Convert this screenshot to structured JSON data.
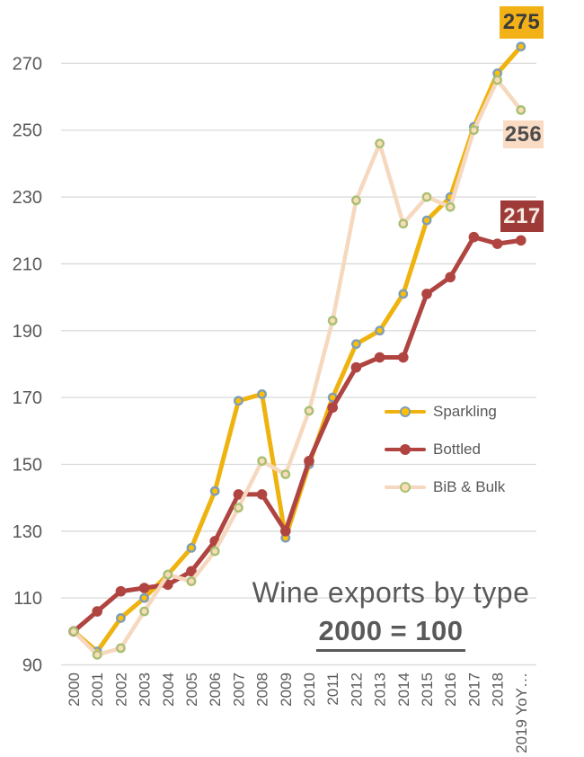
{
  "chart_data": {
    "type": "line",
    "title": "Wine exports by type",
    "subtitle": "2000 = 100",
    "categories": [
      "2000",
      "2001",
      "2002",
      "2003",
      "2004",
      "2005",
      "2006",
      "2007",
      "2008",
      "2009",
      "2010",
      "2011",
      "2012",
      "2013",
      "2014",
      "2015",
      "2016",
      "2017",
      "2018",
      "2019 YoY…"
    ],
    "series": [
      {
        "name": "Sparkling",
        "color": "#efb310",
        "marker_fill": "#ffc000",
        "marker_stroke": "#7f9db9",
        "line_width": 5,
        "marker_radius": 4.2,
        "marker_ring": 2.4,
        "values": [
          100,
          94,
          104,
          110,
          117,
          125,
          142,
          169,
          171,
          128,
          150,
          170,
          186,
          190,
          201,
          223,
          230,
          251,
          267,
          275
        ]
      },
      {
        "name": "Bottled",
        "color": "#b04441",
        "marker_fill": "#b04441",
        "marker_stroke": "#b04441",
        "line_width": 5,
        "marker_radius": 5.8,
        "marker_ring": 0,
        "values": [
          100,
          106,
          112,
          113,
          114,
          118,
          127,
          141,
          141,
          130,
          151,
          167,
          179,
          182,
          182,
          201,
          206,
          218,
          216,
          217
        ]
      },
      {
        "name": "BiB & Bulk",
        "color": "#f6d8bf",
        "marker_fill": "#fbdcba",
        "marker_stroke": "#a8c072",
        "line_width": 4.5,
        "marker_radius": 4.2,
        "marker_ring": 2.4,
        "values": [
          100,
          93,
          95,
          106,
          117,
          115,
          124,
          137,
          151,
          147,
          166,
          193,
          229,
          246,
          222,
          230,
          227,
          250,
          265,
          256
        ]
      }
    ],
    "y_ticks": [
      90,
      110,
      130,
      150,
      170,
      190,
      210,
      230,
      250,
      270
    ],
    "ylim": [
      90,
      280
    ],
    "x_range": [
      "2000",
      "2019 YoY…"
    ],
    "grid": true,
    "grid_color": "#d9d9d9",
    "axis_text_color": "#595959",
    "legend_position": "middle-right",
    "callouts": [
      {
        "series": "Sparkling",
        "text": "275",
        "bg": "#f2b217",
        "fg": "#3b3b3b"
      },
      {
        "series": "BiB & Bulk",
        "text": "256",
        "bg": "#fadcc5",
        "fg": "#4d4d4d"
      },
      {
        "series": "Bottled",
        "text": "217",
        "bg": "#9e3b38",
        "fg": "#f5ece4"
      }
    ]
  }
}
